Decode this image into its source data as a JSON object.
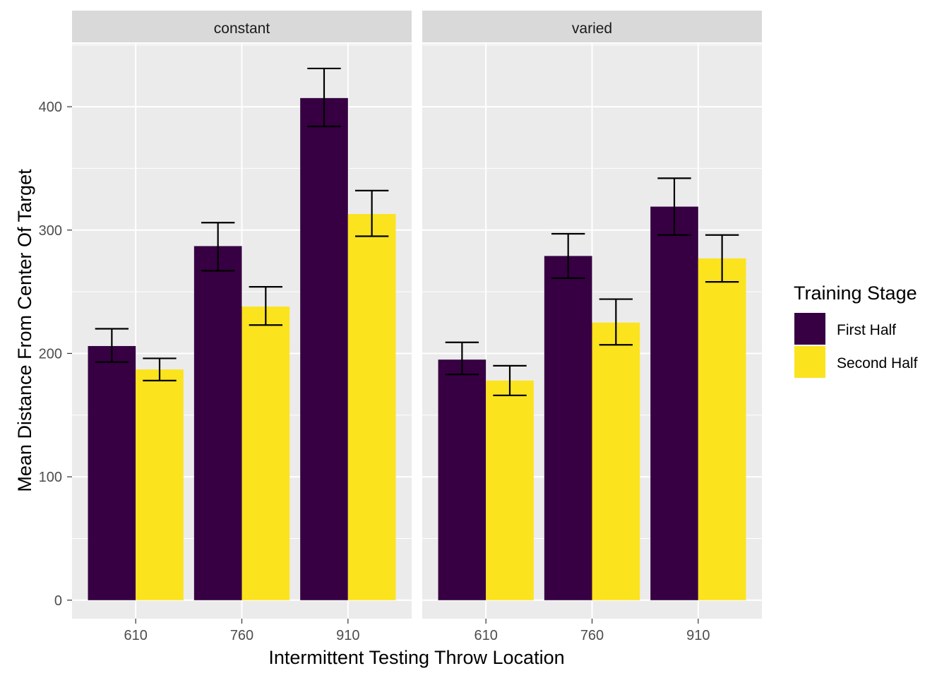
{
  "chart_data": {
    "type": "bar",
    "xlabel": "Intermittent Testing Throw Location",
    "ylabel": "Mean Distance From Center Of Target",
    "ylim": [
      -15,
      451
    ],
    "yticks": [
      0,
      100,
      200,
      300,
      400
    ],
    "grid": true,
    "categories": [
      "610",
      "760",
      "910"
    ],
    "legend": {
      "title": "Training Stage",
      "position": "right",
      "entries": [
        "First Half",
        "Second Half"
      ]
    },
    "colors": {
      "First Half": "#360042",
      "Second Half": "#FBE31E"
    },
    "panels": [
      {
        "label": "constant",
        "series": [
          {
            "name": "First Half",
            "values": [
              206,
              287,
              407
            ],
            "err_low": [
              193,
              267,
              384
            ],
            "err_high": [
              220,
              306,
              431
            ]
          },
          {
            "name": "Second Half",
            "values": [
              187,
              238,
              313
            ],
            "err_low": [
              178,
              223,
              295
            ],
            "err_high": [
              196,
              254,
              332
            ]
          }
        ]
      },
      {
        "label": "varied",
        "series": [
          {
            "name": "First Half",
            "values": [
              195,
              279,
              319
            ],
            "err_low": [
              183,
              261,
              296
            ],
            "err_high": [
              209,
              297,
              342
            ]
          },
          {
            "name": "Second Half",
            "values": [
              178,
              225,
              277
            ],
            "err_low": [
              166,
              207,
              258
            ],
            "err_high": [
              190,
              244,
              296
            ]
          }
        ]
      }
    ]
  }
}
